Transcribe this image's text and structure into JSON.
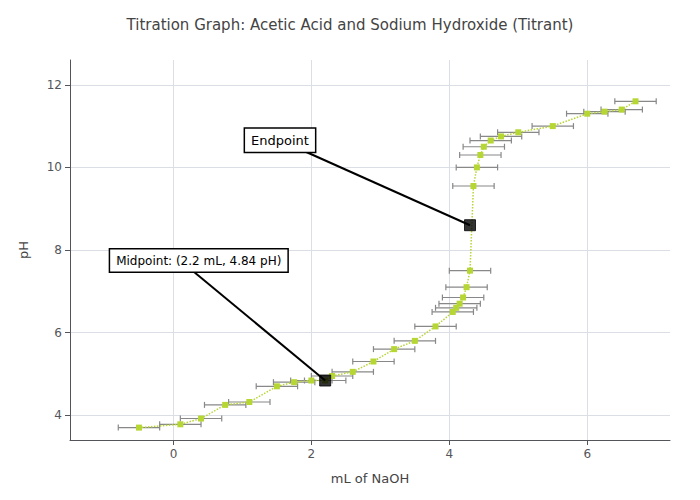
{
  "chart_data": {
    "type": "line",
    "title": "Titration Graph: Acetic Acid and Sodium Hydroxide (Titrant)",
    "xlabel": "mL of NaOH",
    "ylabel": "pH",
    "xlim": [
      -1.5,
      7.2
    ],
    "ylim": [
      3.4,
      12.6
    ],
    "xticks": [
      0,
      2,
      4,
      6
    ],
    "yticks": [
      4,
      6,
      8,
      10,
      12
    ],
    "x": [
      -0.5,
      0.1,
      0.4,
      0.75,
      1.1,
      1.5,
      1.75,
      2.0,
      2.2,
      2.3,
      2.6,
      2.9,
      3.2,
      3.5,
      3.8,
      4.05,
      4.1,
      4.15,
      4.2,
      4.25,
      4.3,
      4.35,
      4.4,
      4.45,
      4.5,
      4.6,
      4.75,
      5.0,
      5.5,
      6.0,
      6.25,
      6.5,
      6.7
    ],
    "values": [
      3.7,
      3.78,
      3.92,
      4.25,
      4.32,
      4.7,
      4.8,
      4.84,
      4.84,
      4.95,
      5.05,
      5.3,
      5.6,
      5.8,
      6.15,
      6.5,
      6.6,
      6.7,
      6.85,
      7.1,
      7.5,
      9.55,
      10.0,
      10.3,
      10.5,
      10.65,
      10.75,
      10.85,
      11.0,
      11.3,
      11.35,
      11.4,
      11.6
    ],
    "xerr": [
      0.3,
      0.3,
      0.3,
      0.3,
      0.3,
      0.3,
      0.3,
      0.3,
      0.3,
      0.3,
      0.3,
      0.3,
      0.3,
      0.3,
      0.3,
      0.3,
      0.3,
      0.3,
      0.3,
      0.3,
      0.3,
      0.3,
      0.3,
      0.3,
      0.3,
      0.3,
      0.3,
      0.3,
      0.3,
      0.3,
      0.3,
      0.3,
      0.3
    ],
    "marker": "square",
    "line_style": "dotted",
    "grid": true,
    "annotations": [
      {
        "text": "Midpoint: (2.2 mL, 4.84 pH)",
        "x": 2.2,
        "y": 4.84,
        "color": "black",
        "marker": "square"
      },
      {
        "text": "Endpoint",
        "x": 4.3,
        "y": 8.6,
        "color": "black",
        "marker": "square"
      }
    ]
  }
}
